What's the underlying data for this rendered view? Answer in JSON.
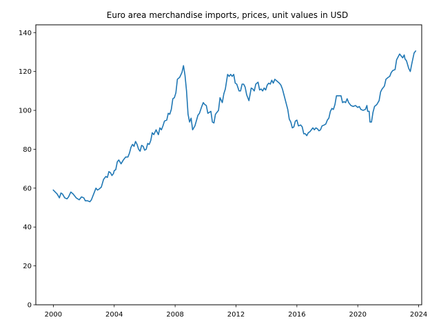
{
  "chart_data": {
    "type": "line",
    "title": "Euro area merchandise imports, prices, unit values in USD",
    "xlabel": "",
    "ylabel": "",
    "xlim": [
      1998.85,
      2024.2
    ],
    "ylim": [
      0,
      144
    ],
    "x_ticks": [
      2000,
      2004,
      2008,
      2012,
      2016,
      2020,
      2024
    ],
    "y_ticks": [
      0,
      20,
      40,
      60,
      80,
      100,
      120,
      140
    ],
    "grid": false,
    "legend": "none",
    "line_color": "#1f77b4",
    "series": [
      {
        "points": [
          [
            2000.0,
            59
          ],
          [
            2000.25,
            57
          ],
          [
            2000.4,
            55
          ],
          [
            2000.5,
            57.5
          ],
          [
            2000.6,
            57
          ],
          [
            2000.75,
            55
          ],
          [
            2000.9,
            54.5
          ],
          [
            2001.0,
            55.5
          ],
          [
            2001.15,
            58
          ],
          [
            2001.3,
            57
          ],
          [
            2001.5,
            55
          ],
          [
            2001.7,
            54
          ],
          [
            2001.85,
            55.5
          ],
          [
            2002.0,
            55
          ],
          [
            2002.1,
            53.5
          ],
          [
            2002.25,
            53.5
          ],
          [
            2002.4,
            53
          ],
          [
            2002.5,
            54
          ],
          [
            2002.65,
            57
          ],
          [
            2002.8,
            60
          ],
          [
            2002.9,
            59
          ],
          [
            2003.0,
            59.5
          ],
          [
            2003.15,
            60.5
          ],
          [
            2003.3,
            64.5
          ],
          [
            2003.45,
            66
          ],
          [
            2003.55,
            65.5
          ],
          [
            2003.65,
            68.5
          ],
          [
            2003.75,
            68
          ],
          [
            2003.85,
            66.5
          ],
          [
            2003.95,
            67.5
          ],
          [
            2004.0,
            69
          ],
          [
            2004.1,
            69.5
          ],
          [
            2004.2,
            73.5
          ],
          [
            2004.3,
            74.5
          ],
          [
            2004.45,
            72.5
          ],
          [
            2004.6,
            74.5
          ],
          [
            2004.75,
            76
          ],
          [
            2004.9,
            76
          ],
          [
            2005.0,
            78
          ],
          [
            2005.1,
            81
          ],
          [
            2005.2,
            82.5
          ],
          [
            2005.3,
            81.5
          ],
          [
            2005.4,
            84
          ],
          [
            2005.5,
            82.5
          ],
          [
            2005.6,
            80
          ],
          [
            2005.7,
            79
          ],
          [
            2005.8,
            82
          ],
          [
            2005.9,
            81.5
          ],
          [
            2006.0,
            79.5
          ],
          [
            2006.1,
            80
          ],
          [
            2006.2,
            83
          ],
          [
            2006.3,
            82.5
          ],
          [
            2006.4,
            84.5
          ],
          [
            2006.5,
            88.5
          ],
          [
            2006.6,
            87.5
          ],
          [
            2006.75,
            90
          ],
          [
            2006.9,
            87.5
          ],
          [
            2007.0,
            91
          ],
          [
            2007.1,
            90
          ],
          [
            2007.2,
            92
          ],
          [
            2007.3,
            94.5
          ],
          [
            2007.45,
            95
          ],
          [
            2007.55,
            98.5
          ],
          [
            2007.65,
            98
          ],
          [
            2007.75,
            100.5
          ],
          [
            2007.85,
            106
          ],
          [
            2007.95,
            106.5
          ],
          [
            2008.05,
            109
          ],
          [
            2008.15,
            116
          ],
          [
            2008.3,
            117
          ],
          [
            2008.45,
            119.5
          ],
          [
            2008.55,
            123
          ],
          [
            2008.65,
            118
          ],
          [
            2008.75,
            110
          ],
          [
            2008.85,
            98
          ],
          [
            2008.95,
            94
          ],
          [
            2009.05,
            96
          ],
          [
            2009.15,
            90
          ],
          [
            2009.3,
            92
          ],
          [
            2009.5,
            97.5
          ],
          [
            2009.6,
            98.5
          ],
          [
            2009.75,
            102
          ],
          [
            2009.85,
            104
          ],
          [
            2009.95,
            103
          ],
          [
            2010.05,
            102.5
          ],
          [
            2010.15,
            98.5
          ],
          [
            2010.35,
            99.5
          ],
          [
            2010.45,
            94
          ],
          [
            2010.55,
            93.5
          ],
          [
            2010.65,
            98
          ],
          [
            2010.75,
            99
          ],
          [
            2010.85,
            100
          ],
          [
            2010.95,
            106.5
          ],
          [
            2011.1,
            104
          ],
          [
            2011.2,
            108.5
          ],
          [
            2011.3,
            111
          ],
          [
            2011.45,
            118.5
          ],
          [
            2011.55,
            117.5
          ],
          [
            2011.65,
            118.5
          ],
          [
            2011.75,
            117.5
          ],
          [
            2011.85,
            118.5
          ],
          [
            2011.95,
            114
          ],
          [
            2012.05,
            113.5
          ],
          [
            2012.2,
            110
          ],
          [
            2012.3,
            110
          ],
          [
            2012.4,
            113.5
          ],
          [
            2012.5,
            113.5
          ],
          [
            2012.6,
            112
          ],
          [
            2012.7,
            108
          ],
          [
            2012.85,
            105
          ],
          [
            2013.0,
            111.5
          ],
          [
            2013.1,
            111
          ],
          [
            2013.2,
            110
          ],
          [
            2013.3,
            113.5
          ],
          [
            2013.45,
            114.5
          ],
          [
            2013.55,
            110.5
          ],
          [
            2013.65,
            111
          ],
          [
            2013.75,
            110
          ],
          [
            2013.85,
            111.5
          ],
          [
            2013.95,
            110.5
          ],
          [
            2014.05,
            113
          ],
          [
            2014.15,
            114
          ],
          [
            2014.25,
            113.5
          ],
          [
            2014.35,
            115.5
          ],
          [
            2014.45,
            114
          ],
          [
            2014.55,
            116
          ],
          [
            2014.7,
            115
          ],
          [
            2014.85,
            114
          ],
          [
            2014.95,
            113
          ],
          [
            2015.05,
            111
          ],
          [
            2015.15,
            108
          ],
          [
            2015.3,
            103.5
          ],
          [
            2015.4,
            100.5
          ],
          [
            2015.5,
            95.5
          ],
          [
            2015.6,
            94
          ],
          [
            2015.7,
            91
          ],
          [
            2015.8,
            91.5
          ],
          [
            2015.9,
            94.5
          ],
          [
            2016.0,
            95
          ],
          [
            2016.1,
            92
          ],
          [
            2016.25,
            92.5
          ],
          [
            2016.35,
            91.5
          ],
          [
            2016.45,
            88
          ],
          [
            2016.55,
            88
          ],
          [
            2016.65,
            87
          ],
          [
            2016.75,
            88.5
          ],
          [
            2016.85,
            89
          ],
          [
            2016.95,
            90
          ],
          [
            2017.05,
            91
          ],
          [
            2017.15,
            90
          ],
          [
            2017.25,
            91
          ],
          [
            2017.35,
            90.5
          ],
          [
            2017.45,
            89.5
          ],
          [
            2017.55,
            90
          ],
          [
            2017.65,
            92
          ],
          [
            2017.8,
            92.5
          ],
          [
            2017.9,
            93
          ],
          [
            2018.0,
            95
          ],
          [
            2018.1,
            96
          ],
          [
            2018.2,
            99.5
          ],
          [
            2018.3,
            101
          ],
          [
            2018.4,
            100.5
          ],
          [
            2018.5,
            103
          ],
          [
            2018.6,
            107.5
          ],
          [
            2018.75,
            107.5
          ],
          [
            2018.9,
            107.5
          ],
          [
            2019.0,
            104
          ],
          [
            2019.1,
            104.5
          ],
          [
            2019.2,
            104
          ],
          [
            2019.3,
            106
          ],
          [
            2019.4,
            104
          ],
          [
            2019.55,
            102.5
          ],
          [
            2019.7,
            102
          ],
          [
            2019.85,
            102.5
          ],
          [
            2020.0,
            101.5
          ],
          [
            2020.1,
            102
          ],
          [
            2020.2,
            100.5
          ],
          [
            2020.35,
            100
          ],
          [
            2020.5,
            100.5
          ],
          [
            2020.6,
            102.5
          ],
          [
            2020.65,
            99.5
          ],
          [
            2020.75,
            99.5
          ],
          [
            2020.8,
            94
          ],
          [
            2020.9,
            94
          ],
          [
            2021.0,
            99
          ],
          [
            2021.1,
            102
          ],
          [
            2021.25,
            103
          ],
          [
            2021.4,
            105
          ],
          [
            2021.5,
            109.5
          ],
          [
            2021.6,
            111
          ],
          [
            2021.75,
            112.5
          ],
          [
            2021.85,
            116
          ],
          [
            2022.0,
            117
          ],
          [
            2022.1,
            117.5
          ],
          [
            2022.2,
            119.5
          ],
          [
            2022.3,
            120.5
          ],
          [
            2022.45,
            121
          ],
          [
            2022.55,
            126
          ],
          [
            2022.65,
            127.5
          ],
          [
            2022.75,
            129
          ],
          [
            2022.85,
            128
          ],
          [
            2022.95,
            127
          ],
          [
            2023.05,
            128.5
          ],
          [
            2023.1,
            126.5
          ],
          [
            2023.2,
            125.5
          ],
          [
            2023.35,
            121.5
          ],
          [
            2023.45,
            120
          ],
          [
            2023.55,
            124
          ],
          [
            2023.7,
            129.5
          ],
          [
            2023.8,
            130.5
          ]
        ]
      }
    ]
  }
}
